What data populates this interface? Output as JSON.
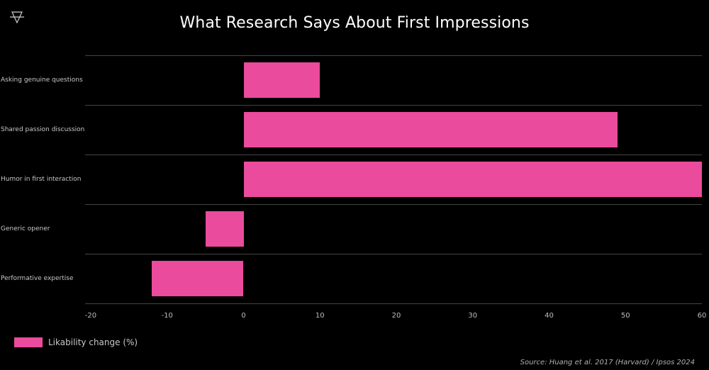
{
  "header": {
    "title": "What Research Says About First Impressions",
    "logo_icon": "inverted-triangle-with-bar-icon"
  },
  "legend": {
    "label": "Likability change (%)",
    "color": "#ea4b9c"
  },
  "source": "Source: Huang et al. 2017 (Harvard) / Ipsos 2024",
  "axis": {
    "ticks": [
      "-20",
      "-10",
      "0",
      "10",
      "20",
      "30",
      "40",
      "50",
      "60"
    ]
  },
  "categories": [
    "Asking genuine questions",
    "Shared passion discussion",
    "Humor in first interaction",
    "Generic opener",
    "Performative expertise"
  ],
  "chart_data": {
    "type": "bar",
    "orientation": "horizontal",
    "title": "What Research Says About First Impressions",
    "categories": [
      "Asking genuine questions",
      "Shared passion discussion",
      "Humor in first interaction",
      "Generic opener",
      "Performative expertise"
    ],
    "series": [
      {
        "name": "Likability change (%)",
        "values": [
          10,
          49,
          60,
          -5,
          -12
        ],
        "color": "#ea4b9c"
      }
    ],
    "xlabel": "",
    "ylabel": "",
    "xlim": [
      -20,
      60
    ],
    "xticks": [
      -20,
      -10,
      0,
      10,
      20,
      30,
      40,
      50,
      60
    ],
    "grid": "horizontal separators between categories",
    "legend_position": "bottom-left",
    "background": "#000000",
    "annotation": "Source: Huang et al. 2017 (Harvard) / Ipsos 2024"
  }
}
